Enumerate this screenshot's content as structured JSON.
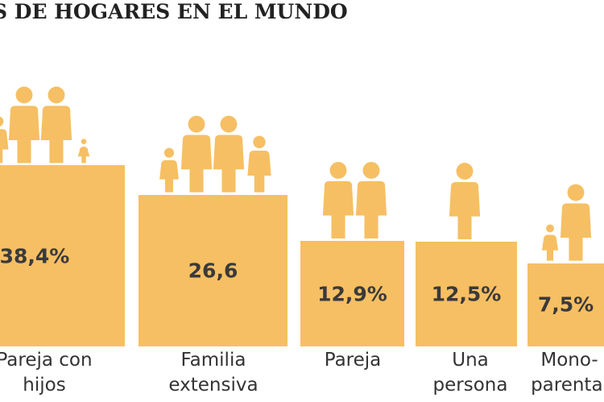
{
  "chart_data": {
    "type": "bar",
    "title": "S DE HOGARES EN EL MUNDO",
    "categories": [
      "Pareja con hijos",
      "Familia extensiva",
      "Pareja",
      "Una persona",
      "Mono-parental"
    ],
    "values": [
      38.4,
      26.6,
      12.9,
      12.5,
      7.5
    ],
    "value_labels": [
      "38,4%",
      "26,6",
      "12,9%",
      "12,5%",
      "7,5%"
    ],
    "color": "#f6bf63"
  }
}
